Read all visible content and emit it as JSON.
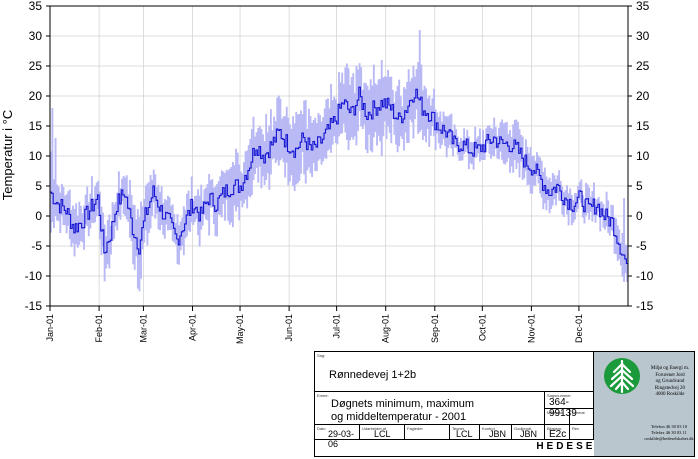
{
  "chart_data": {
    "type": "line",
    "ylabel": "Temperatur i °C",
    "ylim": [
      -15,
      35
    ],
    "yticks": [
      -15,
      -10,
      -5,
      0,
      5,
      10,
      15,
      20,
      25,
      30,
      35
    ],
    "grid": true,
    "x_range": [
      "2001-01-01",
      "2001-12-31"
    ],
    "month_ticks": [
      "Jan-01",
      "Feb-01",
      "Mar-01",
      "Apr-01",
      "May-01",
      "Jun-01",
      "Jul-01",
      "Aug-01",
      "Sep-01",
      "Oct-01",
      "Nov-01",
      "Dec-01"
    ],
    "month_start_days": [
      0,
      31,
      59,
      90,
      120,
      151,
      181,
      212,
      243,
      273,
      304,
      334
    ],
    "series": [
      {
        "role": "range",
        "color": "#b9b9f5",
        "values_note": "daily min/max band"
      },
      {
        "role": "mean",
        "color": "#1414d2"
      }
    ],
    "mean_anchor_days": [
      0,
      5,
      10,
      15,
      20,
      25,
      30,
      34,
      38,
      42,
      47,
      52,
      56,
      60,
      65,
      70,
      75,
      80,
      85,
      90,
      95,
      100,
      105,
      110,
      115,
      120,
      125,
      130,
      135,
      140,
      145,
      150,
      155,
      160,
      165,
      170,
      175,
      180,
      185,
      190,
      195,
      200,
      205,
      210,
      215,
      220,
      225,
      230,
      235,
      240,
      245,
      250,
      255,
      260,
      265,
      270,
      275,
      280,
      285,
      290,
      295,
      300,
      305,
      310,
      315,
      320,
      325,
      330,
      335,
      340,
      345,
      350,
      355,
      360,
      364
    ],
    "mean_anchor_values": [
      4,
      2,
      1,
      -2,
      -1,
      1,
      3,
      -6,
      -3,
      2,
      4,
      -2,
      -5,
      0,
      4,
      1,
      -1,
      -4,
      -1,
      2,
      0,
      3,
      2,
      4,
      5,
      5,
      8,
      12,
      10,
      12,
      14,
      12,
      11,
      13,
      11,
      12,
      14,
      16,
      19,
      17,
      20,
      17,
      18,
      19,
      18,
      16,
      18,
      21,
      18,
      17,
      15,
      14,
      12,
      12,
      11,
      11,
      12,
      13,
      12,
      12,
      11,
      9,
      8,
      6,
      4,
      5,
      3,
      2,
      3,
      1,
      2,
      0,
      -1,
      -5,
      -8
    ],
    "range_anchor_days": [
      0,
      5,
      15,
      30,
      34,
      45,
      56,
      65,
      80,
      90,
      105,
      120,
      140,
      160,
      181,
      190,
      200,
      212,
      220,
      230,
      243,
      260,
      273,
      290,
      304,
      320,
      334,
      350,
      358,
      364
    ],
    "range_half_width": [
      5,
      4,
      3,
      3,
      4,
      3,
      5,
      3,
      3,
      3,
      4,
      4,
      4,
      5,
      5,
      5,
      5,
      4,
      4,
      5,
      3,
      2,
      2,
      3,
      3,
      2,
      2,
      2,
      3,
      3
    ],
    "spikes": [
      {
        "day": 1,
        "max": 18,
        "min": -1
      },
      {
        "day": 3,
        "max": 13,
        "min": 0
      },
      {
        "day": 209,
        "max": 26,
        "min": 10
      },
      {
        "day": 233,
        "max": 31,
        "min": 14
      },
      {
        "day": 136,
        "max": 17,
        "min": 6
      },
      {
        "day": 362,
        "max": 3,
        "min": -11
      }
    ]
  },
  "title_block": {
    "sag_label": "Sag:",
    "sag_value": "Rønnedevej 1+2b",
    "emne_label": "Emne:",
    "emne_line1": "Døgnets minimum, maximum",
    "emne_line2": "og middeltemperatur - 2001",
    "sagsnummer_label": "Sagsnummer",
    "sagsnummer_value": "364-99139",
    "bilagsnr_label": "Bilagsnr.",
    "bilagsnr_value": "E2c",
    "dato_label": "Dato",
    "dato_value": "29-03-06",
    "udarbejdet_label": "Udarbejdet af",
    "udarbejdet_value": "LCL",
    "fagleder_label": "Fagleder",
    "tegner_label": "Tegner",
    "tegner_value": "LCL",
    "kontrol_label": "Kontrol",
    "kontrol_value": "JBN",
    "godkendt_label": "Godkendt",
    "godkendt_value": "JBN",
    "maalestok_label": "Målestok",
    "format_label": "Format",
    "rev_label": "Rev",
    "company_lines": [
      "Miljø og Energi m.",
      "Forurenet Jord",
      "og Grundvand",
      "Ringstedvej 20",
      "4000 Roskilde"
    ],
    "contact_lines": [
      "Telefon 46 30 03 10",
      "Telefax 46 30 03 11",
      "roskilde@hedeselskabet.dk"
    ],
    "company_name": "HEDESELSKABET",
    "logo_color": "#1a9a3a"
  }
}
